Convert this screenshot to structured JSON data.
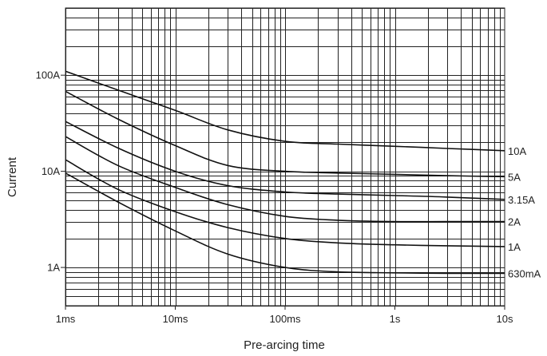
{
  "chart_data": {
    "type": "line",
    "title": "",
    "xlabel": "Pre-arcing time",
    "ylabel": "Current",
    "x_scale": "log",
    "y_scale": "log",
    "xlim": [
      0.001,
      10
    ],
    "ylim": [
      0.4,
      500
    ],
    "grid": true,
    "x_ticks": [
      {
        "value": 0.001,
        "label": "1ms"
      },
      {
        "value": 0.01,
        "label": "10ms"
      },
      {
        "value": 0.1,
        "label": "100ms"
      },
      {
        "value": 1,
        "label": "1s"
      },
      {
        "value": 10,
        "label": "10s"
      }
    ],
    "y_ticks": [
      {
        "value": 1,
        "label": "1A"
      },
      {
        "value": 10,
        "label": "10A"
      },
      {
        "value": 100,
        "label": "100A"
      }
    ],
    "series": [
      {
        "name": "10A",
        "x": [
          0.001,
          0.003,
          0.01,
          0.03,
          0.1,
          0.3,
          1,
          3,
          10
        ],
        "y": [
          110,
          70,
          43,
          27,
          20.5,
          19.2,
          18.2,
          17.3,
          16.4
        ]
      },
      {
        "name": "5A",
        "x": [
          0.001,
          0.003,
          0.01,
          0.03,
          0.1,
          0.3,
          1,
          3,
          10
        ],
        "y": [
          68,
          35,
          18.5,
          11.5,
          10,
          9.6,
          9.3,
          9.0,
          8.8
        ]
      },
      {
        "name": "3.15A",
        "x": [
          0.001,
          0.003,
          0.01,
          0.03,
          0.1,
          0.3,
          1,
          3,
          10
        ],
        "y": [
          33,
          17.5,
          10,
          7.1,
          6.1,
          5.8,
          5.6,
          5.4,
          5.1
        ]
      },
      {
        "name": "2A",
        "x": [
          0.001,
          0.003,
          0.01,
          0.03,
          0.1,
          0.3,
          1,
          3,
          10
        ],
        "y": [
          23,
          11.5,
          6.8,
          4.5,
          3.4,
          3.1,
          3.0,
          3.0,
          3.0
        ]
      },
      {
        "name": "1A",
        "x": [
          0.001,
          0.003,
          0.01,
          0.03,
          0.1,
          0.3,
          1,
          3,
          10
        ],
        "y": [
          13.2,
          6.5,
          3.8,
          2.6,
          2.0,
          1.8,
          1.72,
          1.68,
          1.65
        ]
      },
      {
        "name": "630mA",
        "x": [
          0.001,
          0.003,
          0.01,
          0.03,
          0.1,
          0.3,
          1,
          3,
          10
        ],
        "y": [
          9.6,
          4.8,
          2.4,
          1.38,
          1.0,
          0.9,
          0.88,
          0.87,
          0.87
        ]
      }
    ]
  }
}
